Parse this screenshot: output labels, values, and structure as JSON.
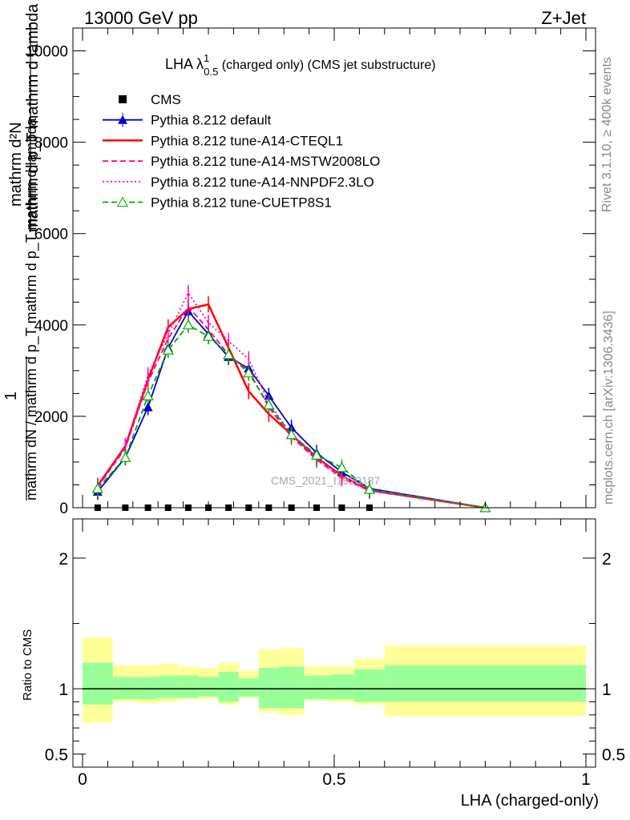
{
  "header": {
    "left": "13000 GeV pp",
    "right": "Z+Jet"
  },
  "title": {
    "main": "LHA λ",
    "sup": "1",
    "sub": "0.5",
    "rest": " (charged only) (CMS jet substructure)"
  },
  "side_labels": {
    "rivet": "Rivet 3.1.10, ≥ 400k events",
    "mcplots": "mcplots.cern.ch [arXiv:1306.3436]"
  },
  "watermark": "CMS_2021_I1920187",
  "ylabel_main": {
    "line1": "mathrm d²N",
    "line2": "mathrm d p_T mathrm d lambda",
    "frac_num": "1",
    "frac_den": "mathrm dN / mathrm d p_T mathrm d p_T mathrm d lambda"
  },
  "ylabel_ratio": "Ratio to CMS",
  "xlabel": "LHA (charged-only)",
  "chart_data": [
    {
      "type": "line",
      "panel": "main",
      "xlim": [
        0,
        1
      ],
      "ylim": [
        0,
        10500
      ],
      "yticks": [
        0,
        2000,
        4000,
        6000,
        8000,
        10000
      ],
      "ytick_labels": [
        "0",
        "2000",
        "4000",
        "6000",
        "8000",
        "10000"
      ],
      "legend_position": "top-left",
      "data_label": "CMS",
      "data": {
        "x": [
          0.03,
          0.085,
          0.13,
          0.17,
          0.21,
          0.25,
          0.29,
          0.33,
          0.37,
          0.415,
          0.465,
          0.515,
          0.57
        ],
        "y": [
          0,
          0,
          0,
          0,
          0,
          0,
          0,
          0,
          0,
          0,
          0,
          0,
          0
        ]
      },
      "series": [
        {
          "name": "Pythia 8.212 default",
          "color": "#0000cc",
          "style": "solid",
          "marker": "triangle",
          "x": [
            0.03,
            0.085,
            0.13,
            0.17,
            0.21,
            0.25,
            0.29,
            0.33,
            0.37,
            0.415,
            0.465,
            0.515,
            0.57,
            0.8
          ],
          "y": [
            350,
            1100,
            2200,
            3500,
            4300,
            3800,
            3300,
            3050,
            2450,
            1750,
            1200,
            780,
            420,
            0
          ]
        },
        {
          "name": "Pythia 8.212 tune-A14-CTEQL1",
          "color": "#ff0000",
          "style": "solid",
          "marker": "none",
          "x": [
            0.03,
            0.085,
            0.13,
            0.17,
            0.21,
            0.25,
            0.29,
            0.33,
            0.37,
            0.415,
            0.465,
            0.515,
            0.57,
            0.8
          ],
          "y": [
            480,
            1350,
            2800,
            3950,
            4350,
            4450,
            3500,
            2550,
            2050,
            1600,
            1100,
            700,
            380,
            0
          ]
        },
        {
          "name": "Pythia 8.212 tune-A14-MSTW2008LO",
          "color": "#ff0080",
          "style": "dashed",
          "marker": "none",
          "x": [
            0.03,
            0.085,
            0.13,
            0.17,
            0.21,
            0.25,
            0.29,
            0.33,
            0.37,
            0.415,
            0.465,
            0.515,
            0.57,
            0.8
          ],
          "y": [
            450,
            1300,
            2750,
            3700,
            4400,
            3900,
            3350,
            3000,
            2200,
            1550,
            1050,
            650,
            370,
            0
          ]
        },
        {
          "name": "Pythia 8.212 tune-A14-NNPDF2.3LO",
          "color": "#ff00cc",
          "style": "dotted",
          "marker": "none",
          "x": [
            0.03,
            0.085,
            0.13,
            0.17,
            0.21,
            0.25,
            0.29,
            0.33,
            0.37,
            0.415,
            0.465,
            0.515,
            0.57,
            0.8
          ],
          "y": [
            460,
            1350,
            2900,
            3800,
            4700,
            4050,
            3650,
            3250,
            2300,
            1600,
            1100,
            700,
            380,
            0
          ]
        },
        {
          "name": "Pythia 8.212 tune-CUETP8S1",
          "color": "#00aa00",
          "style": "dashed",
          "marker": "open-triangle",
          "x": [
            0.03,
            0.085,
            0.13,
            0.17,
            0.21,
            0.25,
            0.29,
            0.33,
            0.37,
            0.415,
            0.465,
            0.515,
            0.57,
            0.8
          ],
          "y": [
            420,
            1100,
            2450,
            3450,
            4000,
            3750,
            3350,
            2950,
            2250,
            1600,
            1150,
            880,
            400,
            0
          ]
        }
      ]
    },
    {
      "type": "area",
      "panel": "ratio",
      "xlim": [
        0,
        1
      ],
      "ylim": [
        0.4,
        2.3
      ],
      "yticks": [
        0.5,
        1,
        2
      ],
      "ytick_labels": [
        "0.5",
        "1",
        "2"
      ],
      "xticks": [
        0,
        0.5,
        1
      ],
      "xtick_labels": [
        "0",
        "0.5",
        "1"
      ],
      "bins": [
        0,
        0.06,
        0.11,
        0.15,
        0.19,
        0.23,
        0.27,
        0.31,
        0.35,
        0.39,
        0.44,
        0.49,
        0.54,
        0.6,
        1.0
      ],
      "band_inner_lo": [
        0.88,
        0.92,
        0.92,
        0.93,
        0.93,
        0.94,
        0.9,
        0.94,
        0.85,
        0.85,
        0.92,
        0.92,
        0.9,
        0.9
      ],
      "band_inner_hi": [
        1.2,
        1.09,
        1.09,
        1.1,
        1.1,
        1.09,
        1.13,
        1.08,
        1.16,
        1.17,
        1.1,
        1.11,
        1.15,
        1.18
      ],
      "band_outer_lo": [
        0.74,
        0.9,
        0.89,
        0.9,
        0.92,
        0.92,
        0.88,
        0.93,
        0.82,
        0.8,
        0.91,
        0.9,
        0.88,
        0.79
      ],
      "band_outer_hi": [
        1.39,
        1.18,
        1.18,
        1.19,
        1.17,
        1.16,
        1.2,
        1.14,
        1.3,
        1.31,
        1.17,
        1.17,
        1.23,
        1.33
      ],
      "band_colors": {
        "inner": "#99ff99",
        "outer": "#ffff99"
      },
      "reference": 1
    }
  ]
}
